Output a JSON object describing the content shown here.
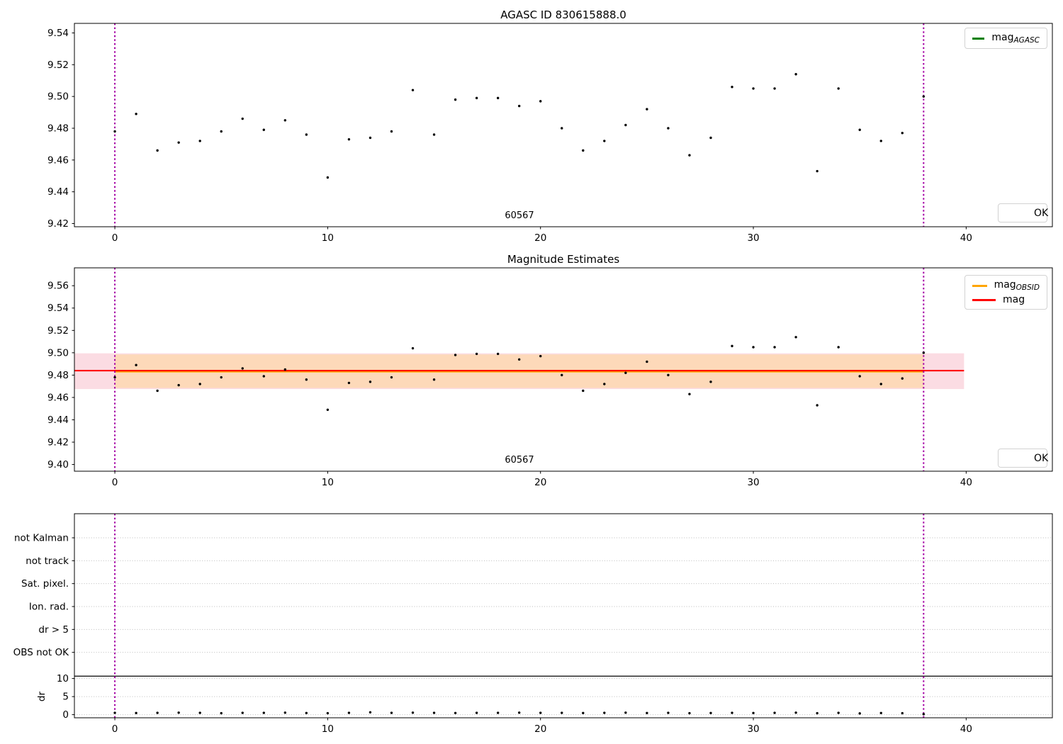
{
  "colors": {
    "background": "#ffffff",
    "points": "#000000",
    "vline": "#a400a4",
    "grid": "#bbbbbb",
    "spine": "#000000",
    "mag_agasc_line": "#008000",
    "mag_obsid_line": "#ffa500",
    "mag_line": "#ff0000",
    "mag_band": "#fbdce3",
    "obsid_band": "#fdd9b9"
  },
  "legend_labels": {
    "mag_agasc_base": "mag",
    "mag_agasc_sub": "AGASC",
    "mag_obsid_base": "mag",
    "mag_obsid_sub": "OBSID",
    "mag_base": "mag",
    "ok": "OK"
  },
  "x_obs": [
    0,
    1,
    2,
    3,
    4,
    5,
    6,
    7,
    8,
    9,
    10,
    11,
    12,
    13,
    14,
    15,
    16,
    17,
    18,
    19,
    20,
    21,
    22,
    23,
    24,
    25,
    26,
    27,
    28,
    29,
    30,
    31,
    32,
    33,
    34,
    35,
    36,
    37,
    38
  ],
  "chart_data": [
    {
      "type": "scatter",
      "panel": "top",
      "title": "AGASC ID 830615888.0",
      "obsid_annotation": {
        "text": "60567",
        "x": 19
      },
      "series": [
        {
          "name": "OK",
          "marker": "dot",
          "values": [
            9.478,
            9.489,
            9.466,
            9.471,
            9.472,
            9.478,
            9.486,
            9.479,
            9.485,
            9.476,
            9.449,
            9.473,
            9.474,
            9.478,
            9.504,
            9.476,
            9.498,
            9.499,
            9.499,
            9.494,
            9.497,
            9.48,
            9.466,
            9.472,
            9.482,
            9.492,
            9.48,
            9.463,
            9.474,
            9.506,
            9.505,
            9.505,
            9.514,
            9.453,
            9.505,
            9.479,
            9.472,
            9.477,
            9.5
          ]
        }
      ],
      "xlim": [
        -1.9,
        44.05
      ],
      "ylim": [
        9.418,
        9.546
      ],
      "xticks": [
        0,
        10,
        20,
        30,
        40
      ],
      "yticks": [
        9.42,
        9.44,
        9.46,
        9.48,
        9.5,
        9.52,
        9.54
      ],
      "vlines": [
        0,
        38
      ],
      "legend_entries": [
        "mag_AGASC (green line)",
        "OK (black dot)"
      ],
      "grid": false
    },
    {
      "type": "scatter",
      "panel": "middle",
      "title": "Magnitude Estimates",
      "obsid_annotation": {
        "text": "60567",
        "x": 19
      },
      "series": [
        {
          "name": "OK",
          "marker": "dot",
          "values": [
            9.478,
            9.489,
            9.466,
            9.471,
            9.472,
            9.478,
            9.486,
            9.479,
            9.485,
            9.476,
            9.449,
            9.473,
            9.474,
            9.478,
            9.504,
            9.476,
            9.498,
            9.499,
            9.499,
            9.494,
            9.497,
            9.48,
            9.466,
            9.472,
            9.482,
            9.492,
            9.48,
            9.463,
            9.474,
            9.506,
            9.505,
            9.505,
            9.514,
            9.453,
            9.505,
            9.479,
            9.472,
            9.477,
            9.5
          ]
        }
      ],
      "mag_line": {
        "value": 9.484,
        "x_start": -1.9,
        "x_end": 39.9
      },
      "mag_band": {
        "lo": 9.4675,
        "hi": 9.4995,
        "x_start": -1.9,
        "x_end": 39.9
      },
      "obsid_line": {
        "value": 9.4835,
        "x_start": 0,
        "x_end": 38
      },
      "obsid_band": {
        "lo": 9.4685,
        "hi": 9.4985,
        "x_start": 0,
        "x_end": 38
      },
      "xlim": [
        -1.9,
        44.05
      ],
      "ylim": [
        9.394,
        9.576
      ],
      "xticks": [
        0,
        10,
        20,
        30,
        40
      ],
      "yticks": [
        9.4,
        9.42,
        9.44,
        9.46,
        9.48,
        9.5,
        9.52,
        9.54,
        9.56
      ],
      "vlines": [
        0,
        38
      ],
      "legend_entries": [
        "mag_OBSID (orange line)",
        "mag (red line)",
        "OK (black dot)"
      ],
      "grid": false
    },
    {
      "type": "scatter",
      "panel": "bottom",
      "flag_categories": [
        "not Kalman",
        "not track",
        "Sat. pixel.",
        "Ion. rad.",
        "dr > 5",
        "OBS not OK"
      ],
      "flag_points": [],
      "dr_axis_label": "dr",
      "dr_ticks": [
        10,
        5,
        0
      ],
      "dr_values": [
        0.5,
        0.45,
        0.5,
        0.55,
        0.5,
        0.4,
        0.5,
        0.5,
        0.55,
        0.45,
        0.4,
        0.5,
        0.65,
        0.5,
        0.55,
        0.5,
        0.45,
        0.5,
        0.5,
        0.55,
        0.5,
        0.5,
        0.45,
        0.5,
        0.55,
        0.45,
        0.5,
        0.4,
        0.45,
        0.5,
        0.45,
        0.5,
        0.55,
        0.4,
        0.5,
        0.35,
        0.45,
        0.4,
        0.15
      ],
      "hline_dr": 10.65,
      "xticks": [
        0,
        10,
        20,
        30,
        40
      ],
      "xlim": [
        -1.9,
        44.05
      ],
      "vlines": [
        0,
        38
      ],
      "grid": true
    }
  ]
}
